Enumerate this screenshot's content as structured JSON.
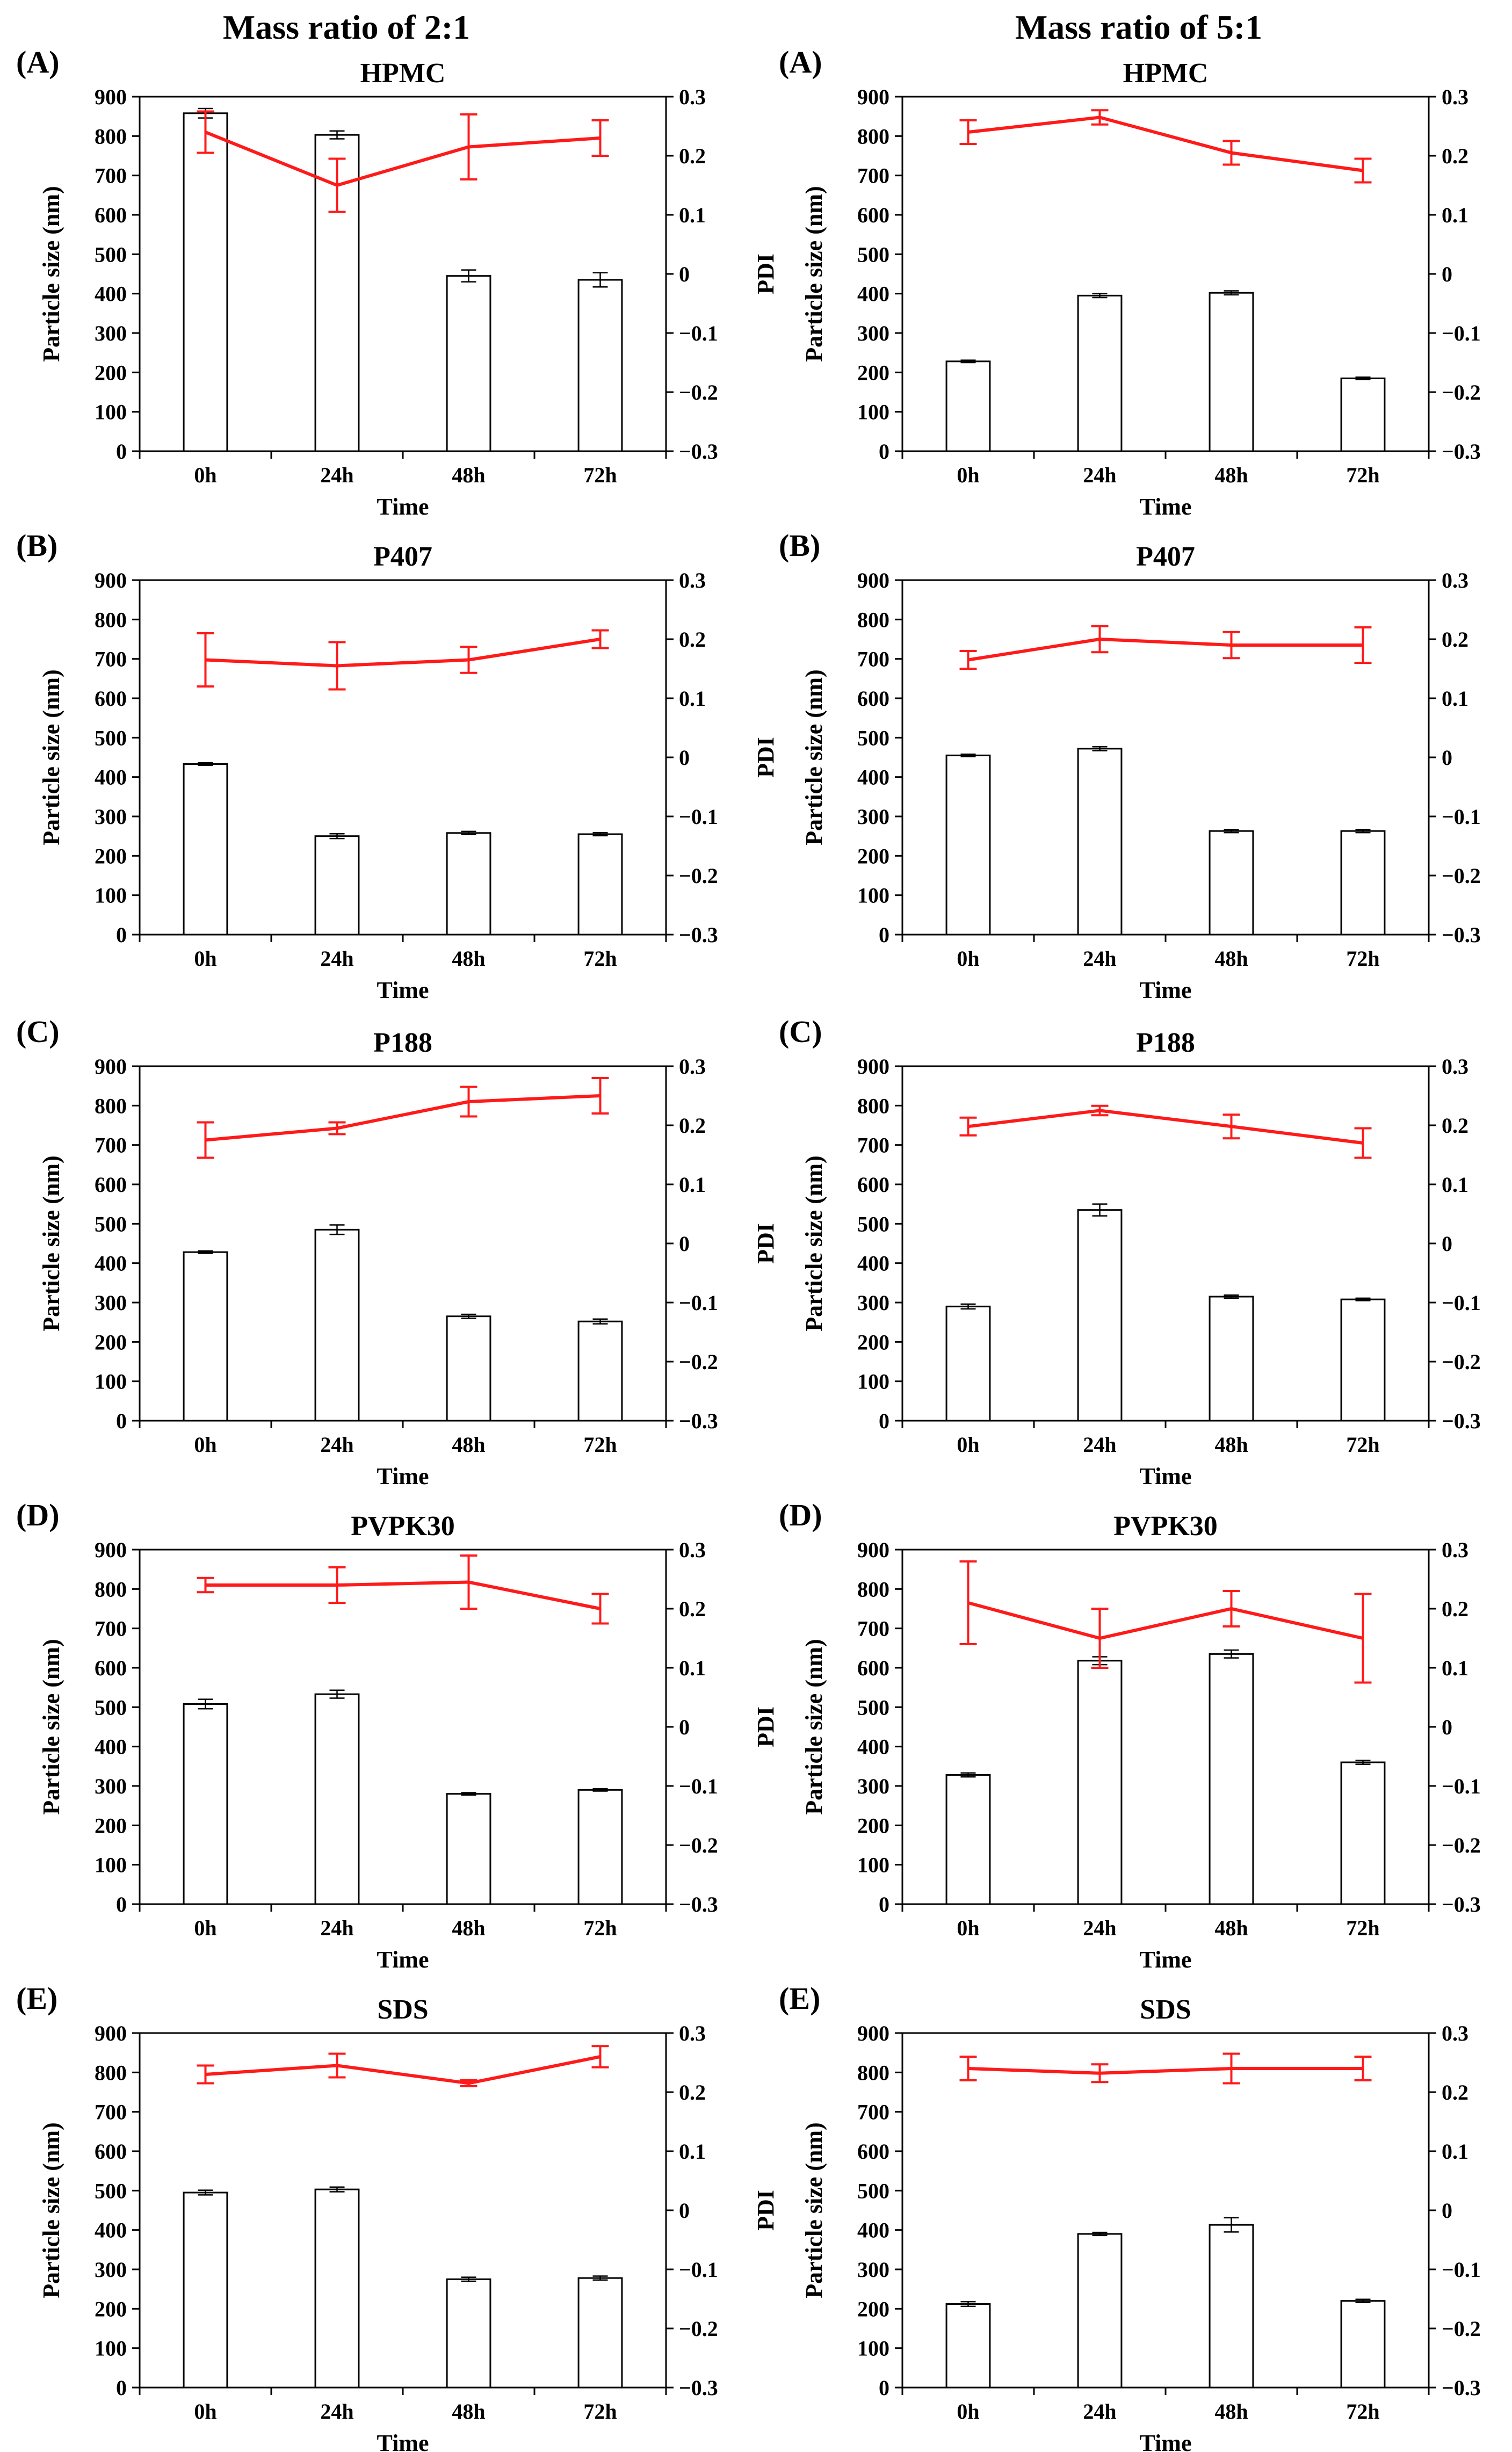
{
  "column_titles": [
    "Mass ratio of 2:1",
    "Mass ratio of 5:1"
  ],
  "colors": {
    "bar_fill": "#ffffff",
    "bar_stroke": "#000000",
    "pdi_line": "#ff1a1a",
    "axis": "#000000"
  },
  "chart_data": [
    {
      "type": "bar",
      "panel": "(A)",
      "title": "HPMC",
      "column": "Mass ratio of 2:1",
      "categories": [
        "0h",
        "24h",
        "48h",
        "72h"
      ],
      "xlabel": "Time",
      "ylabel": "Particle size (nm)",
      "y2label": "PDI",
      "ylim": [
        0,
        900
      ],
      "y2lim": [
        -0.3,
        0.3
      ],
      "yticks": [
        "0",
        "100",
        "200",
        "300",
        "400",
        "500",
        "600",
        "700",
        "800",
        "900"
      ],
      "y2ticks": [
        "-0.3",
        "-0.2",
        "-0.1",
        "0",
        "0.1",
        "0.2",
        "0.3"
      ],
      "series": [
        {
          "name": "Particle size (nm)",
          "kind": "bar",
          "axis": "left",
          "values": [
            858,
            803,
            445,
            435
          ],
          "errors": [
            12,
            10,
            15,
            18
          ]
        },
        {
          "name": "PDI",
          "kind": "line",
          "axis": "right",
          "values": [
            0.24,
            0.15,
            0.215,
            0.23
          ],
          "errors": [
            0.035,
            0.045,
            0.055,
            0.03
          ]
        }
      ]
    },
    {
      "type": "bar",
      "panel": "(A)",
      "title": "HPMC",
      "column": "Mass ratio of 5:1",
      "categories": [
        "0h",
        "24h",
        "48h",
        "72h"
      ],
      "xlabel": "Time",
      "ylabel": "Particle size (nm)",
      "y2label": "PDI",
      "ylim": [
        0,
        900
      ],
      "y2lim": [
        -0.3,
        0.3
      ],
      "yticks": [
        "0",
        "100",
        "200",
        "300",
        "400",
        "500",
        "600",
        "700",
        "800",
        "900"
      ],
      "y2ticks": [
        "-0.3",
        "-0.2",
        "-0.1",
        "0",
        "0.1",
        "0.2",
        "0.3"
      ],
      "series": [
        {
          "name": "Particle size (nm)",
          "kind": "bar",
          "axis": "left",
          "values": [
            228,
            395,
            402,
            185
          ],
          "errors": [
            3,
            5,
            5,
            3
          ]
        },
        {
          "name": "PDI",
          "kind": "line",
          "axis": "right",
          "values": [
            0.24,
            0.265,
            0.205,
            0.175
          ],
          "errors": [
            0.02,
            0.012,
            0.02,
            0.02
          ]
        }
      ]
    },
    {
      "type": "bar",
      "panel": "(B)",
      "title": "P407",
      "column": "Mass ratio of 2:1",
      "categories": [
        "0h",
        "24h",
        "48h",
        "72h"
      ],
      "xlabel": "Time",
      "ylabel": "Particle size (nm)",
      "y2label": "PDI",
      "ylim": [
        0,
        900
      ],
      "y2lim": [
        -0.3,
        0.3
      ],
      "yticks": [
        "0",
        "100",
        "200",
        "300",
        "400",
        "500",
        "600",
        "700",
        "800",
        "900"
      ],
      "y2ticks": [
        "-0.3",
        "-0.2",
        "-0.1",
        "0",
        "0.1",
        "0.2",
        "0.3"
      ],
      "series": [
        {
          "name": "Particle size (nm)",
          "kind": "bar",
          "axis": "left",
          "values": [
            433,
            250,
            258,
            255
          ],
          "errors": [
            3,
            6,
            4,
            4
          ]
        },
        {
          "name": "PDI",
          "kind": "line",
          "axis": "right",
          "values": [
            0.165,
            0.155,
            0.165,
            0.2
          ],
          "errors": [
            0.045,
            0.04,
            0.022,
            0.015
          ]
        }
      ]
    },
    {
      "type": "bar",
      "panel": "(B)",
      "title": "P407",
      "column": "Mass ratio of 5:1",
      "categories": [
        "0h",
        "24h",
        "48h",
        "72h"
      ],
      "xlabel": "Time",
      "ylabel": "Particle size (nm)",
      "y2label": "PDI",
      "ylim": [
        0,
        900
      ],
      "y2lim": [
        -0.3,
        0.3
      ],
      "yticks": [
        "0",
        "100",
        "200",
        "300",
        "400",
        "500",
        "600",
        "700",
        "800",
        "900"
      ],
      "y2ticks": [
        "-0.3",
        "-0.2",
        "-0.1",
        "0",
        "0.1",
        "0.2",
        "0.3"
      ],
      "series": [
        {
          "name": "Particle size (nm)",
          "kind": "bar",
          "axis": "left",
          "values": [
            455,
            472,
            263,
            263
          ],
          "errors": [
            3,
            5,
            4,
            4
          ]
        },
        {
          "name": "PDI",
          "kind": "line",
          "axis": "right",
          "values": [
            0.165,
            0.2,
            0.19,
            0.19
          ],
          "errors": [
            0.015,
            0.022,
            0.022,
            0.03
          ]
        }
      ]
    },
    {
      "type": "bar",
      "panel": "(C)",
      "title": "P188",
      "column": "Mass ratio of 2:1",
      "categories": [
        "0h",
        "24h",
        "48h",
        "72h"
      ],
      "xlabel": "Time",
      "ylabel": "Particle size (nm)",
      "y2label": "PDI",
      "ylim": [
        0,
        900
      ],
      "y2lim": [
        -0.3,
        0.3
      ],
      "yticks": [
        "0",
        "100",
        "200",
        "300",
        "400",
        "500",
        "600",
        "700",
        "800",
        "900"
      ],
      "y2ticks": [
        "-0.3",
        "-0.2",
        "-0.1",
        "0",
        "0.1",
        "0.2",
        "0.3"
      ],
      "series": [
        {
          "name": "Particle size (nm)",
          "kind": "bar",
          "axis": "left",
          "values": [
            428,
            485,
            265,
            252
          ],
          "errors": [
            3,
            12,
            5,
            6
          ]
        },
        {
          "name": "PDI",
          "kind": "line",
          "axis": "right",
          "values": [
            0.175,
            0.195,
            0.24,
            0.25
          ],
          "errors": [
            0.03,
            0.01,
            0.025,
            0.03
          ]
        }
      ]
    },
    {
      "type": "bar",
      "panel": "(C)",
      "title": "P188",
      "column": "Mass ratio of 5:1",
      "categories": [
        "0h",
        "24h",
        "48h",
        "72h"
      ],
      "xlabel": "Time",
      "ylabel": "Particle size (nm)",
      "y2label": "PDI",
      "ylim": [
        0,
        900
      ],
      "y2lim": [
        -0.3,
        0.3
      ],
      "yticks": [
        "0",
        "100",
        "200",
        "300",
        "400",
        "500",
        "600",
        "700",
        "800",
        "900"
      ],
      "y2ticks": [
        "-0.3",
        "-0.2",
        "-0.1",
        "0",
        "0.1",
        "0.2",
        "0.3"
      ],
      "series": [
        {
          "name": "Particle size (nm)",
          "kind": "bar",
          "axis": "left",
          "values": [
            290,
            535,
            315,
            308
          ],
          "errors": [
            6,
            15,
            4,
            3
          ]
        },
        {
          "name": "PDI",
          "kind": "line",
          "axis": "right",
          "values": [
            0.198,
            0.225,
            0.198,
            0.17
          ],
          "errors": [
            0.015,
            0.008,
            0.02,
            0.025
          ]
        }
      ]
    },
    {
      "type": "bar",
      "panel": "(D)",
      "title": "PVPK30",
      "column": "Mass ratio of 2:1",
      "categories": [
        "0h",
        "24h",
        "48h",
        "72h"
      ],
      "xlabel": "Time",
      "ylabel": "Particle size (nm)",
      "y2label": "PDI",
      "ylim": [
        0,
        900
      ],
      "y2lim": [
        -0.3,
        0.3
      ],
      "yticks": [
        "0",
        "100",
        "200",
        "300",
        "400",
        "500",
        "600",
        "700",
        "800",
        "900"
      ],
      "y2ticks": [
        "-0.3",
        "-0.2",
        "-0.1",
        "0",
        "0.1",
        "0.2",
        "0.3"
      ],
      "series": [
        {
          "name": "Particle size (nm)",
          "kind": "bar",
          "axis": "left",
          "values": [
            508,
            533,
            280,
            290
          ],
          "errors": [
            12,
            10,
            3,
            3
          ]
        },
        {
          "name": "PDI",
          "kind": "line",
          "axis": "right",
          "values": [
            0.24,
            0.24,
            0.245,
            0.2
          ],
          "errors": [
            0.012,
            0.03,
            0.045,
            0.025
          ]
        }
      ]
    },
    {
      "type": "bar",
      "panel": "(D)",
      "title": "PVPK30",
      "column": "Mass ratio of 5:1",
      "categories": [
        "0h",
        "24h",
        "48h",
        "72h"
      ],
      "xlabel": "Time",
      "ylabel": "Particle size (nm)",
      "y2label": "PDI",
      "ylim": [
        0,
        900
      ],
      "y2lim": [
        -0.3,
        0.3
      ],
      "yticks": [
        "0",
        "100",
        "200",
        "300",
        "400",
        "500",
        "600",
        "700",
        "800",
        "900"
      ],
      "y2ticks": [
        "-0.3",
        "-0.2",
        "-0.1",
        "0",
        "0.1",
        "0.2",
        "0.3"
      ],
      "series": [
        {
          "name": "Particle size (nm)",
          "kind": "bar",
          "axis": "left",
          "values": [
            328,
            618,
            635,
            360
          ],
          "errors": [
            5,
            10,
            10,
            5
          ]
        },
        {
          "name": "PDI",
          "kind": "line",
          "axis": "right",
          "values": [
            0.21,
            0.15,
            0.2,
            0.15
          ],
          "errors": [
            0.07,
            0.05,
            0.03,
            0.075
          ]
        }
      ]
    },
    {
      "type": "bar",
      "panel": "(E)",
      "title": "SDS",
      "column": "Mass ratio of 2:1",
      "categories": [
        "0h",
        "24h",
        "48h",
        "72h"
      ],
      "xlabel": "Time",
      "ylabel": "Particle size (nm)",
      "y2label": "PDI",
      "ylim": [
        0,
        900
      ],
      "y2lim": [
        -0.3,
        0.3
      ],
      "yticks": [
        "0",
        "100",
        "200",
        "300",
        "400",
        "500",
        "600",
        "700",
        "800",
        "900"
      ],
      "y2ticks": [
        "-0.3",
        "-0.2",
        "-0.1",
        "0",
        "0.1",
        "0.2",
        "0.3"
      ],
      "series": [
        {
          "name": "Particle size (nm)",
          "kind": "bar",
          "axis": "left",
          "values": [
            495,
            503,
            275,
            278
          ],
          "errors": [
            6,
            6,
            5,
            5
          ]
        },
        {
          "name": "PDI",
          "kind": "line",
          "axis": "right",
          "values": [
            0.23,
            0.245,
            0.215,
            0.26
          ],
          "errors": [
            0.015,
            0.02,
            0.005,
            0.018
          ]
        }
      ]
    },
    {
      "type": "bar",
      "panel": "(E)",
      "title": "SDS",
      "column": "Mass ratio of 5:1",
      "categories": [
        "0h",
        "24h",
        "48h",
        "72h"
      ],
      "xlabel": "Time",
      "ylabel": "Particle size (nm)",
      "y2label": "PDI",
      "ylim": [
        0,
        900
      ],
      "y2lim": [
        -0.3,
        0.3
      ],
      "yticks": [
        "0",
        "100",
        "200",
        "300",
        "400",
        "500",
        "600",
        "700",
        "800",
        "900"
      ],
      "y2ticks": [
        "-0.3",
        "-0.2",
        "-0.1",
        "0",
        "0.1",
        "0.2",
        "0.3"
      ],
      "series": [
        {
          "name": "Particle size (nm)",
          "kind": "bar",
          "axis": "left",
          "values": [
            212,
            390,
            413,
            220
          ],
          "errors": [
            6,
            4,
            18,
            4
          ]
        },
        {
          "name": "PDI",
          "kind": "line",
          "axis": "right",
          "values": [
            0.24,
            0.232,
            0.24,
            0.24
          ],
          "errors": [
            0.02,
            0.015,
            0.025,
            0.02
          ]
        }
      ]
    }
  ]
}
